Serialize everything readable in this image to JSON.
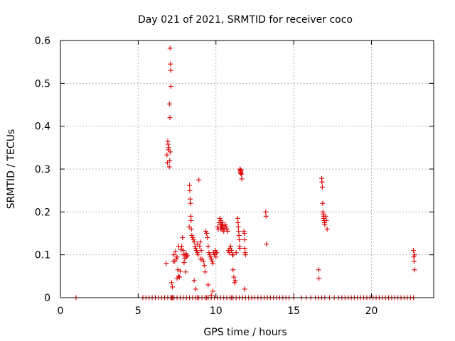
{
  "chart_data": {
    "type": "scatter",
    "title": "Day 021 of 2021, SRMTID for receiver coco",
    "xlabel": "GPS time / hours",
    "ylabel": "SRMTID / TECUs",
    "xlim": [
      0,
      24
    ],
    "ylim": [
      0,
      0.6
    ],
    "xticks": [
      0,
      5,
      10,
      15,
      20
    ],
    "yticks": [
      0,
      0.1,
      0.2,
      0.3,
      0.4,
      0.5,
      0.6
    ],
    "xtick_labels": [
      "0",
      "5",
      "10",
      "15",
      "20"
    ],
    "ytick_labels": [
      "0",
      "0.1",
      "0.2",
      "0.3",
      "0.4",
      "0.5",
      "0.6"
    ],
    "grid": true,
    "marker": "+",
    "color": "#dd0000",
    "series": [
      {
        "name": "SRMTID",
        "x": [
          1.0,
          5.3,
          5.5,
          5.7,
          5.9,
          6.1,
          6.3,
          6.5,
          6.7,
          6.9,
          7.1,
          7.3,
          7.5,
          7.7,
          7.9,
          8.1,
          8.3,
          8.5,
          8.7,
          8.9,
          9.1,
          9.3,
          9.5,
          9.7,
          9.9,
          10.1,
          10.3,
          10.5,
          10.7,
          10.9,
          11.1,
          11.3,
          11.5,
          11.7,
          11.9,
          12.1,
          12.3,
          12.5,
          12.7,
          12.9,
          13.1,
          13.3,
          13.5,
          13.7,
          13.9,
          14.1,
          14.3,
          14.5,
          14.7,
          15.0,
          15.5,
          15.8,
          16.1,
          16.4,
          16.6,
          16.8,
          17.0,
          17.3,
          17.6,
          17.9,
          18.1,
          18.3,
          18.5,
          18.7,
          18.9,
          19.1,
          19.3,
          19.5,
          19.7,
          19.9,
          20.1,
          20.3,
          20.5,
          20.7,
          20.9,
          21.1,
          21.3,
          21.5,
          21.7,
          21.9,
          22.1,
          22.3,
          22.5,
          22.7,
          7.05,
          7.07,
          7.09,
          7.1,
          7.02,
          7.04,
          6.9,
          6.92,
          6.95,
          6.97,
          6.85,
          6.88,
          7.0,
          7.03,
          7.06,
          6.8,
          7.4,
          7.3,
          7.5,
          7.6,
          7.45,
          7.35,
          7.55,
          7.7,
          7.8,
          7.9,
          8.0,
          8.1,
          7.25,
          7.2,
          7.15,
          7.65,
          7.75,
          7.85,
          7.95,
          8.05,
          7.5,
          7.6,
          8.3,
          8.32,
          8.34,
          8.36,
          8.38,
          8.4,
          8.28,
          8.42,
          8.45,
          8.5,
          8.55,
          8.6,
          8.65,
          8.7,
          8.75,
          8.8,
          8.85,
          8.9,
          8.95,
          9.0,
          9.05,
          9.1,
          9.2,
          9.25,
          9.3,
          9.35,
          9.4,
          9.45,
          9.5,
          9.55,
          9.6,
          9.65,
          9.7,
          9.75,
          9.8,
          9.85,
          9.9,
          9.95,
          10.0,
          8.6,
          8.7,
          8.8,
          9.0,
          9.5,
          10.1,
          10.15,
          10.2,
          10.25,
          10.3,
          10.35,
          10.4,
          10.45,
          10.5,
          10.55,
          10.6,
          10.65,
          10.7,
          10.75,
          10.8,
          10.85,
          10.9,
          10.95,
          11.0,
          11.05,
          11.1,
          11.15,
          11.2,
          11.25,
          11.3,
          10.3,
          10.32,
          10.34,
          10.36,
          10.38,
          10.4,
          10.42,
          10.44,
          11.4,
          11.42,
          11.44,
          11.46,
          11.48,
          11.5,
          11.52,
          11.54,
          11.55,
          11.57,
          11.59,
          11.6,
          11.62,
          11.64,
          11.66,
          11.58,
          11.8,
          11.82,
          11.84,
          11.86,
          11.88,
          11.9,
          11.85,
          13.2,
          13.22,
          13.24,
          16.6,
          16.62,
          16.8,
          16.82,
          16.84,
          16.86,
          16.88,
          16.9,
          16.92,
          16.94,
          16.96,
          16.98,
          17.0,
          17.05,
          17.1,
          17.15,
          22.7,
          22.72,
          22.74,
          22.76,
          22.78,
          8.1,
          8.15,
          7.9,
          8.0,
          9.7,
          9.8,
          10.05,
          10.0,
          9.4,
          11.7,
          11.0,
          11.1,
          7.3,
          7.2,
          7.15,
          8.8
        ],
        "y": [
          0,
          0,
          0,
          0,
          0,
          0,
          0,
          0,
          0,
          0,
          0,
          0,
          0,
          0,
          0,
          0,
          0,
          0,
          0,
          0,
          0,
          0,
          0,
          0,
          0,
          0,
          0,
          0,
          0,
          0,
          0,
          0,
          0,
          0,
          0,
          0,
          0,
          0,
          0,
          0,
          0,
          0,
          0,
          0,
          0,
          0,
          0,
          0,
          0,
          0,
          0,
          0,
          0,
          0,
          0,
          0,
          0,
          0,
          0,
          0,
          0,
          0,
          0,
          0,
          0,
          0,
          0,
          0,
          0,
          0,
          0,
          0,
          0,
          0,
          0,
          0,
          0,
          0,
          0,
          0,
          0,
          0,
          0,
          0,
          0.582,
          0.545,
          0.53,
          0.493,
          0.452,
          0.42,
          0.365,
          0.358,
          0.345,
          0.35,
          0.333,
          0.315,
          0.305,
          0.32,
          0.34,
          0.08,
          0.108,
          0.1,
          0.095,
          0.12,
          0.09,
          0.085,
          0.065,
          0.062,
          0.12,
          0.11,
          0.1,
          0.095,
          0.085,
          0.025,
          0.035,
          0.048,
          0.112,
          0.14,
          0.082,
          0.06,
          0.045,
          0.05,
          0.262,
          0.25,
          0.23,
          0.22,
          0.19,
          0.18,
          0.165,
          0.16,
          0.145,
          0.14,
          0.135,
          0.13,
          0.12,
          0.115,
          0.11,
          0.105,
          0.1,
          0.275,
          0.12,
          0.13,
          0.11,
          0.09,
          0.085,
          0.075,
          0.06,
          0.155,
          0.15,
          0.14,
          0.12,
          0.105,
          0.1,
          0.095,
          0.09,
          0.085,
          0.08,
          0.105,
          0.1,
          0.11,
          0.105,
          0.04,
          0.02,
          0.125,
          0.09,
          0.03,
          0.165,
          0.16,
          0.175,
          0.185,
          0.17,
          0.165,
          0.16,
          0.165,
          0.155,
          0.16,
          0.17,
          0.165,
          0.16,
          0.155,
          0.11,
          0.105,
          0.115,
          0.12,
          0.11,
          0.1,
          0.065,
          0.048,
          0.035,
          0.04,
          0.105,
          0.16,
          0.18,
          0.165,
          0.17,
          0.16,
          0.175,
          0.162,
          0.168,
          0.185,
          0.175,
          0.165,
          0.155,
          0.145,
          0.135,
          0.12,
          0.115,
          0.3,
          0.295,
          0.29,
          0.292,
          0.296,
          0.288,
          0.277,
          0.298,
          0.155,
          0.15,
          0.135,
          0.115,
          0.105,
          0.1,
          0.02,
          0.2,
          0.19,
          0.125,
          0.065,
          0.045,
          0.278,
          0.27,
          0.258,
          0.22,
          0.2,
          0.195,
          0.19,
          0.185,
          0.18,
          0.175,
          0.17,
          0.19,
          0.18,
          0.16,
          0.11,
          0.095,
          0.085,
          0.065,
          0.1,
          0.102,
          0.098,
          0.1,
          0.092,
          0.005,
          0.015,
          0.105,
          0.095,
          0.0,
          0.0,
          0.0,
          0.1,
          0.0,
          0.0,
          0.0,
          0.0
        ]
      }
    ]
  }
}
